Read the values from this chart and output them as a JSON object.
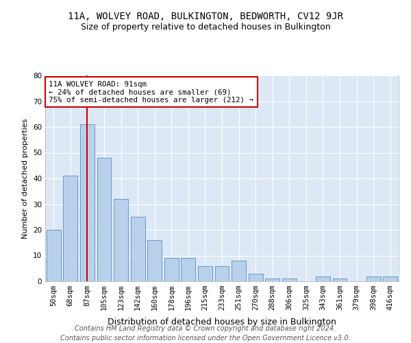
{
  "title": "11A, WOLVEY ROAD, BULKINGTON, BEDWORTH, CV12 9JR",
  "subtitle": "Size of property relative to detached houses in Bulkington",
  "xlabel": "Distribution of detached houses by size in Bulkington",
  "ylabel": "Number of detached properties",
  "footer1": "Contains HM Land Registry data © Crown copyright and database right 2024.",
  "footer2": "Contains public sector information licensed under the Open Government Licence v3.0.",
  "categories": [
    "50sqm",
    "68sqm",
    "87sqm",
    "105sqm",
    "123sqm",
    "142sqm",
    "160sqm",
    "178sqm",
    "196sqm",
    "215sqm",
    "233sqm",
    "251sqm",
    "270sqm",
    "288sqm",
    "306sqm",
    "325sqm",
    "343sqm",
    "361sqm",
    "379sqm",
    "398sqm",
    "416sqm"
  ],
  "values": [
    20,
    41,
    61,
    48,
    32,
    25,
    16,
    9,
    9,
    6,
    6,
    8,
    3,
    1,
    1,
    0,
    2,
    1,
    0,
    2,
    2
  ],
  "bar_color": "#b8d0ea",
  "bar_edge_color": "#6699cc",
  "highlight_index": 2,
  "highlight_color": "#cc0000",
  "annotation_line1": "11A WOLVEY ROAD: 91sqm",
  "annotation_line2": "← 24% of detached houses are smaller (69)",
  "annotation_line3": "75% of semi-detached houses are larger (212) →",
  "annotation_box_color": "#ffffff",
  "annotation_box_edge": "#cc0000",
  "ylim": [
    0,
    80
  ],
  "yticks": [
    0,
    10,
    20,
    30,
    40,
    50,
    60,
    70,
    80
  ],
  "background_color": "#dce8f5",
  "grid_color": "#ffffff",
  "title_fontsize": 10,
  "subtitle_fontsize": 9,
  "xlabel_fontsize": 9,
  "ylabel_fontsize": 8,
  "tick_fontsize": 7.5,
  "footer_fontsize": 7
}
